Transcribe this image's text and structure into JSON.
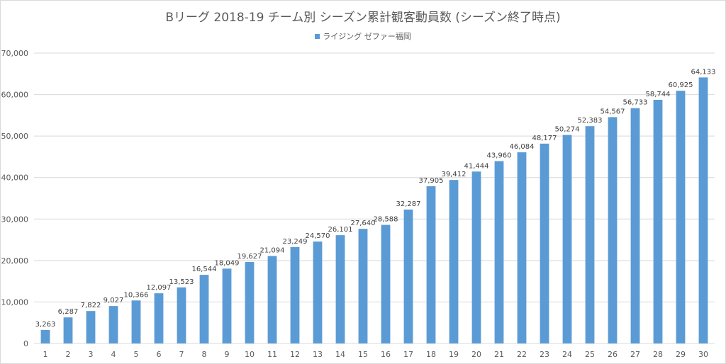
{
  "chart_data": {
    "type": "bar",
    "title": "Bリーグ 2018-19 チーム別 シーズン累計観客動員数 (シーズン終了時点)",
    "xlabel": "",
    "ylabel": "",
    "ylim": [
      0,
      70000
    ],
    "yticks": [
      "0",
      "10,000",
      "20,000",
      "30,000",
      "40,000",
      "50,000",
      "60,000",
      "70,000"
    ],
    "grid": true,
    "legend_position": "top",
    "categories": [
      "1",
      "2",
      "3",
      "4",
      "5",
      "6",
      "7",
      "8",
      "9",
      "10",
      "11",
      "12",
      "13",
      "14",
      "15",
      "16",
      "17",
      "18",
      "19",
      "20",
      "21",
      "22",
      "23",
      "24",
      "25",
      "26",
      "27",
      "28",
      "29",
      "30"
    ],
    "series": [
      {
        "name": "ライジング ゼファー福岡",
        "color": "#5b9bd5",
        "values": [
          3263,
          6287,
          7822,
          9027,
          10366,
          12097,
          13523,
          16544,
          18049,
          19627,
          21094,
          23249,
          24570,
          26101,
          27640,
          28588,
          32287,
          37905,
          39412,
          41444,
          43960,
          46084,
          48177,
          50274,
          52383,
          54567,
          56733,
          58744,
          60925,
          64133
        ],
        "labels": [
          "3,263",
          "6,287",
          "7,822",
          "9,027",
          "10,366",
          "12,097",
          "13,523",
          "16,544",
          "18,049",
          "19,627",
          "21,094",
          "23,249",
          "24,570",
          "26,101",
          "27,640",
          "28,588",
          "32,287",
          "37,905",
          "39,412",
          "41,444",
          "43,960",
          "46,084",
          "48,177",
          "50,274",
          "52,383",
          "54,567",
          "56,733",
          "58,744",
          "60,925",
          "64,133"
        ]
      }
    ]
  }
}
